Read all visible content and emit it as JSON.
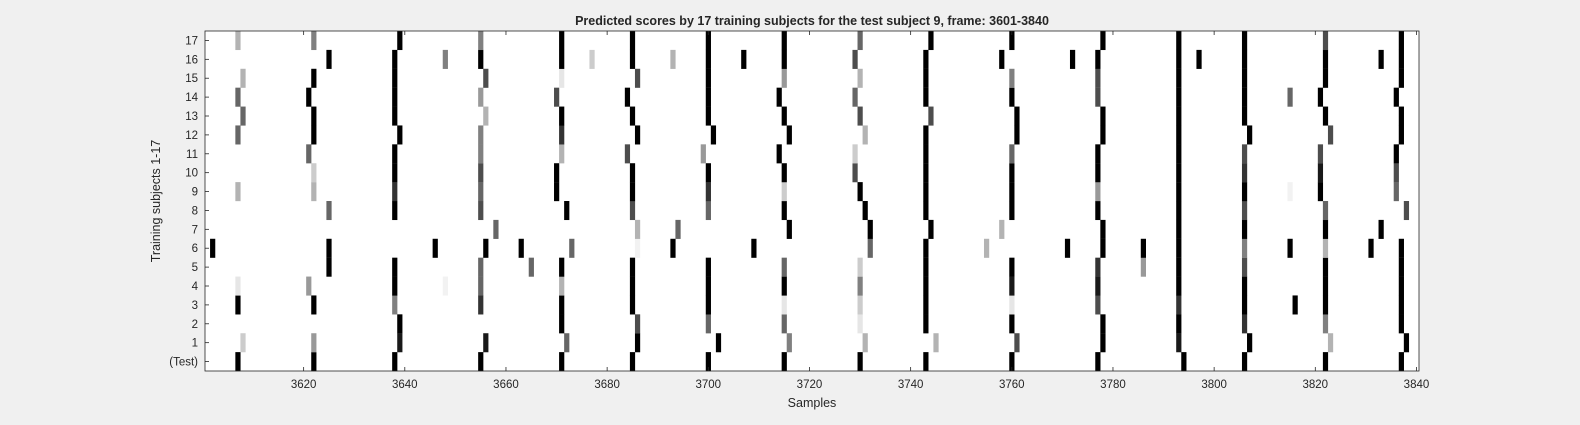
{
  "chart_data": {
    "type": "heatmap",
    "title": "Predicted scores by 17 training subjects for the test subject 9, frame: 3601-3840",
    "xlabel": "Samples",
    "ylabel": "Training subjects 1-17",
    "xlim": [
      3601,
      3840
    ],
    "x_ticks": [
      3620,
      3640,
      3660,
      3680,
      3700,
      3720,
      3740,
      3760,
      3780,
      3800,
      3820,
      3840
    ],
    "x_tick_labels": [
      "3620",
      "3640",
      "3660",
      "3680",
      "3700",
      "3720",
      "3740",
      "3760",
      "3780",
      "3800",
      "3820",
      "3840"
    ],
    "rows": [
      "(Test)",
      "1",
      "2",
      "3",
      "4",
      "5",
      "6",
      "7",
      "8",
      "9",
      "10",
      "11",
      "12",
      "13",
      "14",
      "15",
      "16",
      "17"
    ],
    "colormap": "gray (white = 0, black = 1)",
    "cells": [
      {
        "row": "(Test)",
        "marks": [
          [
            3607,
            1
          ],
          [
            3622,
            1
          ],
          [
            3638,
            1
          ],
          [
            3655,
            1
          ],
          [
            3671,
            1
          ],
          [
            3685,
            1
          ],
          [
            3700,
            1
          ],
          [
            3715,
            1
          ],
          [
            3730,
            1
          ],
          [
            3743,
            1
          ],
          [
            3760,
            1
          ],
          [
            3777,
            1
          ],
          [
            3794,
            1
          ],
          [
            3806,
            1
          ],
          [
            3822,
            1
          ],
          [
            3837,
            1
          ]
        ]
      },
      {
        "row": "1",
        "marks": [
          [
            3608,
            0.2
          ],
          [
            3622,
            0.4
          ],
          [
            3639,
            0.9
          ],
          [
            3656,
            0.9
          ],
          [
            3672,
            0.6
          ],
          [
            3686,
            1
          ],
          [
            3702,
            1
          ],
          [
            3716,
            0.5
          ],
          [
            3731,
            0.3
          ],
          [
            3745,
            0.3
          ],
          [
            3761,
            0.7
          ],
          [
            3778,
            1
          ],
          [
            3793,
            0.9
          ],
          [
            3807,
            1
          ],
          [
            3823,
            0.3
          ],
          [
            3838,
            1
          ]
        ]
      },
      {
        "row": "2",
        "marks": [
          [
            3639,
            1
          ],
          [
            3671,
            1
          ],
          [
            3686,
            0.7
          ],
          [
            3700,
            0.6
          ],
          [
            3715,
            0.6
          ],
          [
            3730,
            0.1
          ],
          [
            3743,
            1
          ],
          [
            3760,
            1
          ],
          [
            3778,
            1
          ],
          [
            3793,
            1
          ],
          [
            3806,
            0.8
          ],
          [
            3822,
            0.5
          ],
          [
            3837,
            1
          ]
        ]
      },
      {
        "row": "3",
        "marks": [
          [
            3607,
            1
          ],
          [
            3622,
            1
          ],
          [
            3638,
            0.5
          ],
          [
            3655,
            0.8
          ],
          [
            3671,
            1
          ],
          [
            3685,
            1
          ],
          [
            3700,
            1
          ],
          [
            3715,
            0.1
          ],
          [
            3730,
            0.2
          ],
          [
            3743,
            1
          ],
          [
            3760,
            0.1
          ],
          [
            3777,
            0.7
          ],
          [
            3793,
            0.8
          ],
          [
            3806,
            1
          ],
          [
            3816,
            1
          ],
          [
            3822,
            1
          ],
          [
            3837,
            1
          ]
        ]
      },
      {
        "row": "4",
        "marks": [
          [
            3607,
            0.1
          ],
          [
            3621,
            0.4
          ],
          [
            3638,
            1
          ],
          [
            3648,
            0.05
          ],
          [
            3655,
            0.6
          ],
          [
            3671,
            0.3
          ],
          [
            3685,
            1
          ],
          [
            3700,
            1
          ],
          [
            3715,
            1
          ],
          [
            3730,
            0.5
          ],
          [
            3743,
            1
          ],
          [
            3760,
            0.9
          ],
          [
            3777,
            0.9
          ],
          [
            3793,
            1
          ],
          [
            3806,
            1
          ],
          [
            3822,
            1
          ],
          [
            3837,
            1
          ]
        ]
      },
      {
        "row": "5",
        "marks": [
          [
            3625,
            1
          ],
          [
            3638,
            1
          ],
          [
            3655,
            0.6
          ],
          [
            3665,
            0.6
          ],
          [
            3671,
            1
          ],
          [
            3685,
            1
          ],
          [
            3700,
            1
          ],
          [
            3715,
            0.6
          ],
          [
            3730,
            0.2
          ],
          [
            3743,
            1
          ],
          [
            3760,
            1
          ],
          [
            3777,
            0.8
          ],
          [
            3786,
            0.4
          ],
          [
            3793,
            1
          ],
          [
            3806,
            0.7
          ],
          [
            3822,
            1
          ],
          [
            3837,
            1
          ]
        ]
      },
      {
        "row": "6",
        "marks": [
          [
            3602,
            1
          ],
          [
            3625,
            1
          ],
          [
            3646,
            1
          ],
          [
            3656,
            1
          ],
          [
            3663,
            1
          ],
          [
            3673,
            0.6
          ],
          [
            3686,
            0.05
          ],
          [
            3693,
            1
          ],
          [
            3709,
            1
          ],
          [
            3732,
            0.6
          ],
          [
            3743,
            1
          ],
          [
            3755,
            0.3
          ],
          [
            3771,
            1
          ],
          [
            3778,
            1
          ],
          [
            3786,
            1
          ],
          [
            3793,
            1
          ],
          [
            3806,
            0.5
          ],
          [
            3815,
            1
          ],
          [
            3822,
            0.3
          ],
          [
            3831,
            1
          ],
          [
            3837,
            1
          ]
        ]
      },
      {
        "row": "7",
        "marks": [
          [
            3658,
            0.6
          ],
          [
            3686,
            0.3
          ],
          [
            3694,
            0.6
          ],
          [
            3716,
            1
          ],
          [
            3732,
            1
          ],
          [
            3744,
            1
          ],
          [
            3758,
            0.3
          ],
          [
            3778,
            1
          ],
          [
            3793,
            1
          ],
          [
            3806,
            1
          ],
          [
            3822,
            1
          ],
          [
            3833,
            1
          ]
        ]
      },
      {
        "row": "8",
        "marks": [
          [
            3625,
            0.6
          ],
          [
            3638,
            1
          ],
          [
            3655,
            0.7
          ],
          [
            3672,
            1
          ],
          [
            3685,
            0.7
          ],
          [
            3700,
            0.6
          ],
          [
            3715,
            1
          ],
          [
            3731,
            1
          ],
          [
            3743,
            1
          ],
          [
            3760,
            1
          ],
          [
            3777,
            1
          ],
          [
            3793,
            1
          ],
          [
            3806,
            0.7
          ],
          [
            3822,
            0.6
          ],
          [
            3838,
            0.7
          ]
        ]
      },
      {
        "row": "9",
        "marks": [
          [
            3607,
            0.3
          ],
          [
            3622,
            0.3
          ],
          [
            3638,
            0.8
          ],
          [
            3655,
            0.6
          ],
          [
            3670,
            1
          ],
          [
            3685,
            1
          ],
          [
            3700,
            0.8
          ],
          [
            3715,
            0.2
          ],
          [
            3730,
            1
          ],
          [
            3743,
            1
          ],
          [
            3760,
            1
          ],
          [
            3777,
            0.4
          ],
          [
            3793,
            1
          ],
          [
            3806,
            1
          ],
          [
            3815,
            0.05
          ],
          [
            3821,
            1
          ],
          [
            3836,
            0.6
          ]
        ]
      },
      {
        "row": "10",
        "marks": [
          [
            3622,
            0.2
          ],
          [
            3638,
            1
          ],
          [
            3655,
            0.7
          ],
          [
            3670,
            1
          ],
          [
            3685,
            1
          ],
          [
            3700,
            1
          ],
          [
            3715,
            1
          ],
          [
            3729,
            0.7
          ],
          [
            3743,
            1
          ],
          [
            3760,
            1
          ],
          [
            3777,
            1
          ],
          [
            3793,
            1
          ],
          [
            3806,
            0.8
          ],
          [
            3821,
            0.9
          ],
          [
            3836,
            0.7
          ]
        ]
      },
      {
        "row": "11",
        "marks": [
          [
            3621,
            0.6
          ],
          [
            3638,
            1
          ],
          [
            3655,
            0.5
          ],
          [
            3671,
            0.3
          ],
          [
            3684,
            0.7
          ],
          [
            3699,
            0.4
          ],
          [
            3714,
            1
          ],
          [
            3729,
            0.2
          ],
          [
            3743,
            1
          ],
          [
            3760,
            0.6
          ],
          [
            3777,
            1
          ],
          [
            3793,
            1
          ],
          [
            3806,
            0.7
          ],
          [
            3821,
            0.7
          ],
          [
            3836,
            1
          ]
        ]
      },
      {
        "row": "12",
        "marks": [
          [
            3607,
            0.6
          ],
          [
            3622,
            1
          ],
          [
            3639,
            1
          ],
          [
            3655,
            0.5
          ],
          [
            3671,
            0.8
          ],
          [
            3686,
            1
          ],
          [
            3701,
            1
          ],
          [
            3716,
            1
          ],
          [
            3731,
            0.3
          ],
          [
            3743,
            1
          ],
          [
            3761,
            1
          ],
          [
            3778,
            1
          ],
          [
            3793,
            1
          ],
          [
            3807,
            1
          ],
          [
            3823,
            0.7
          ],
          [
            3837,
            1
          ]
        ]
      },
      {
        "row": "13",
        "marks": [
          [
            3608,
            0.6
          ],
          [
            3622,
            1
          ],
          [
            3638,
            1
          ],
          [
            3656,
            0.3
          ],
          [
            3671,
            1
          ],
          [
            3685,
            1
          ],
          [
            3700,
            1
          ],
          [
            3715,
            1
          ],
          [
            3730,
            0.7
          ],
          [
            3744,
            0.7
          ],
          [
            3761,
            1
          ],
          [
            3778,
            1
          ],
          [
            3793,
            1
          ],
          [
            3806,
            1
          ],
          [
            3822,
            1
          ],
          [
            3837,
            1
          ]
        ]
      },
      {
        "row": "14",
        "marks": [
          [
            3607,
            0.6
          ],
          [
            3621,
            1
          ],
          [
            3638,
            1
          ],
          [
            3655,
            0.4
          ],
          [
            3670,
            0.7
          ],
          [
            3684,
            1
          ],
          [
            3700,
            1
          ],
          [
            3714,
            1
          ],
          [
            3729,
            0.6
          ],
          [
            3743,
            1
          ],
          [
            3760,
            1
          ],
          [
            3777,
            0.7
          ],
          [
            3793,
            1
          ],
          [
            3806,
            1
          ],
          [
            3815,
            0.6
          ],
          [
            3821,
            1
          ],
          [
            3836,
            1
          ]
        ]
      },
      {
        "row": "15",
        "marks": [
          [
            3608,
            0.3
          ],
          [
            3622,
            1
          ],
          [
            3638,
            1
          ],
          [
            3656,
            0.7
          ],
          [
            3671,
            0.1
          ],
          [
            3686,
            0.7
          ],
          [
            3700,
            1
          ],
          [
            3715,
            0.4
          ],
          [
            3730,
            0.3
          ],
          [
            3743,
            1
          ],
          [
            3760,
            0.5
          ],
          [
            3777,
            0.7
          ],
          [
            3793,
            1
          ],
          [
            3806,
            1
          ],
          [
            3822,
            1
          ],
          [
            3837,
            1
          ]
        ]
      },
      {
        "row": "16",
        "marks": [
          [
            3625,
            1
          ],
          [
            3638,
            1
          ],
          [
            3648,
            0.5
          ],
          [
            3655,
            1
          ],
          [
            3671,
            1
          ],
          [
            3677,
            0.2
          ],
          [
            3685,
            1
          ],
          [
            3693,
            0.3
          ],
          [
            3700,
            1
          ],
          [
            3707,
            1
          ],
          [
            3715,
            1
          ],
          [
            3729,
            0.7
          ],
          [
            3743,
            1
          ],
          [
            3758,
            1
          ],
          [
            3772,
            1
          ],
          [
            3777,
            1
          ],
          [
            3793,
            1
          ],
          [
            3797,
            1
          ],
          [
            3806,
            1
          ],
          [
            3822,
            1
          ],
          [
            3833,
            1
          ],
          [
            3837,
            1
          ]
        ]
      },
      {
        "row": "17",
        "marks": [
          [
            3607,
            0.3
          ],
          [
            3622,
            0.5
          ],
          [
            3639,
            1
          ],
          [
            3655,
            0.5
          ],
          [
            3671,
            1
          ],
          [
            3685,
            1
          ],
          [
            3700,
            1
          ],
          [
            3715,
            1
          ],
          [
            3730,
            0.6
          ],
          [
            3744,
            1
          ],
          [
            3760,
            1
          ],
          [
            3778,
            1
          ],
          [
            3793,
            1
          ],
          [
            3806,
            1
          ],
          [
            3822,
            0.7
          ],
          [
            3837,
            1
          ]
        ]
      }
    ]
  }
}
